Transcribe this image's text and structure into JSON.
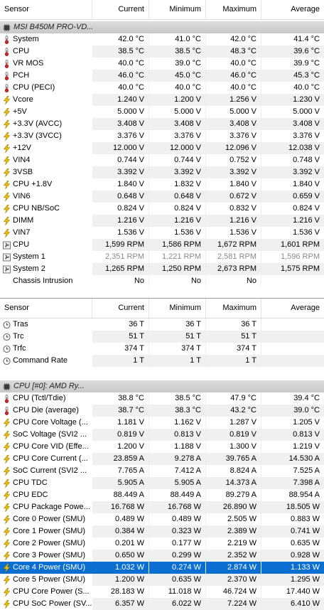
{
  "headers": {
    "sensor": "Sensor",
    "current": "Current",
    "minimum": "Minimum",
    "maximum": "Maximum",
    "average": "Average"
  },
  "panel1": {
    "group_label": "MSI B450M PRO-VD...",
    "rows": [
      {
        "icon": "thermometer",
        "label": "System",
        "cur": "42.0 °C",
        "min": "41.0 °C",
        "max": "42.0 °C",
        "avg": "41.4 °C"
      },
      {
        "icon": "thermometer",
        "label": "CPU",
        "cur": "38.5 °C",
        "min": "38.5 °C",
        "max": "48.3 °C",
        "avg": "39.6 °C"
      },
      {
        "icon": "thermometer",
        "label": "VR MOS",
        "cur": "40.0 °C",
        "min": "39.0 °C",
        "max": "40.0 °C",
        "avg": "39.9 °C"
      },
      {
        "icon": "thermometer",
        "label": "PCH",
        "cur": "46.0 °C",
        "min": "45.0 °C",
        "max": "46.0 °C",
        "avg": "45.3 °C"
      },
      {
        "icon": "thermometer",
        "label": "CPU (PECI)",
        "cur": "40.0 °C",
        "min": "40.0 °C",
        "max": "40.0 °C",
        "avg": "40.0 °C"
      },
      {
        "icon": "bolt",
        "label": "Vcore",
        "cur": "1.240 V",
        "min": "1.200 V",
        "max": "1.256 V",
        "avg": "1.230 V"
      },
      {
        "icon": "bolt",
        "label": "+5V",
        "cur": "5.000 V",
        "min": "5.000 V",
        "max": "5.000 V",
        "avg": "5.000 V"
      },
      {
        "icon": "bolt",
        "label": "+3.3V (AVCC)",
        "cur": "3.408 V",
        "min": "3.408 V",
        "max": "3.408 V",
        "avg": "3.408 V"
      },
      {
        "icon": "bolt",
        "label": "+3.3V (3VCC)",
        "cur": "3.376 V",
        "min": "3.376 V",
        "max": "3.376 V",
        "avg": "3.376 V"
      },
      {
        "icon": "bolt",
        "label": "+12V",
        "cur": "12.000 V",
        "min": "12.000 V",
        "max": "12.096 V",
        "avg": "12.038 V"
      },
      {
        "icon": "bolt",
        "label": "VIN4",
        "cur": "0.744 V",
        "min": "0.744 V",
        "max": "0.752 V",
        "avg": "0.748 V"
      },
      {
        "icon": "bolt",
        "label": "3VSB",
        "cur": "3.392 V",
        "min": "3.392 V",
        "max": "3.392 V",
        "avg": "3.392 V"
      },
      {
        "icon": "bolt",
        "label": "CPU +1.8V",
        "cur": "1.840 V",
        "min": "1.832 V",
        "max": "1.840 V",
        "avg": "1.840 V"
      },
      {
        "icon": "bolt",
        "label": "VIN6",
        "cur": "0.648 V",
        "min": "0.648 V",
        "max": "0.672 V",
        "avg": "0.659 V"
      },
      {
        "icon": "bolt",
        "label": "CPU NB/SoC",
        "cur": "0.824 V",
        "min": "0.824 V",
        "max": "0.832 V",
        "avg": "0.824 V"
      },
      {
        "icon": "bolt",
        "label": "DIMM",
        "cur": "1.216 V",
        "min": "1.216 V",
        "max": "1.216 V",
        "avg": "1.216 V"
      },
      {
        "icon": "bolt",
        "label": "VIN7",
        "cur": "1.536 V",
        "min": "1.536 V",
        "max": "1.536 V",
        "avg": "1.536 V"
      },
      {
        "icon": "fan",
        "label": "CPU",
        "cur": "1,599 RPM",
        "min": "1,586 RPM",
        "max": "1,672 RPM",
        "avg": "1,601 RPM"
      },
      {
        "icon": "fan",
        "label": "System 1",
        "cur": "2,351 RPM",
        "min": "1,221 RPM",
        "max": "2,581 RPM",
        "avg": "1,596 RPM",
        "dim": true
      },
      {
        "icon": "fan",
        "label": "System 2",
        "cur": "1,265 RPM",
        "min": "1,250 RPM",
        "max": "2,673 RPM",
        "avg": "1,575 RPM"
      },
      {
        "icon": "blank",
        "label": "Chassis Intrusion",
        "cur": "No",
        "min": "No",
        "max": "No",
        "avg": ""
      }
    ]
  },
  "panel2": {
    "timing_rows": [
      {
        "icon": "clock",
        "label": "Tras",
        "cur": "36 T",
        "min": "36 T",
        "max": "36 T",
        "avg": ""
      },
      {
        "icon": "clock",
        "label": "Trc",
        "cur": "51 T",
        "min": "51 T",
        "max": "51 T",
        "avg": ""
      },
      {
        "icon": "clock",
        "label": "Trfc",
        "cur": "374 T",
        "min": "374 T",
        "max": "374 T",
        "avg": ""
      },
      {
        "icon": "clock",
        "label": "Command Rate",
        "cur": "1 T",
        "min": "1 T",
        "max": "1 T",
        "avg": ""
      }
    ],
    "cpu_group_label": "CPU [#0]: AMD Ry...",
    "cpu_rows": [
      {
        "icon": "thermometer",
        "label": "CPU (Tctl/Tdie)",
        "cur": "38.8 °C",
        "min": "38.5 °C",
        "max": "47.9 °C",
        "avg": "39.4 °C"
      },
      {
        "icon": "thermometer",
        "label": "CPU Die (average)",
        "cur": "38.7 °C",
        "min": "38.3 °C",
        "max": "43.2 °C",
        "avg": "39.0 °C"
      },
      {
        "icon": "bolt",
        "label": "CPU Core Voltage (...",
        "cur": "1.181 V",
        "min": "1.162 V",
        "max": "1.287 V",
        "avg": "1.205 V"
      },
      {
        "icon": "bolt",
        "label": "SoC Voltage (SVI2 ...",
        "cur": "0.819 V",
        "min": "0.813 V",
        "max": "0.819 V",
        "avg": "0.813 V"
      },
      {
        "icon": "bolt",
        "label": "CPU Core VID (Effe...",
        "cur": "1.200 V",
        "min": "1.188 V",
        "max": "1.300 V",
        "avg": "1.219 V"
      },
      {
        "icon": "bolt",
        "label": "CPU Core Current (...",
        "cur": "23.859 A",
        "min": "9.278 A",
        "max": "39.765 A",
        "avg": "14.530 A"
      },
      {
        "icon": "bolt",
        "label": "SoC Current (SVI2 ...",
        "cur": "7.765 A",
        "min": "7.412 A",
        "max": "8.824 A",
        "avg": "7.525 A"
      },
      {
        "icon": "bolt",
        "label": "CPU TDC",
        "cur": "5.905 A",
        "min": "5.905 A",
        "max": "14.373 A",
        "avg": "7.398 A"
      },
      {
        "icon": "bolt",
        "label": "CPU EDC",
        "cur": "88.449 A",
        "min": "88.449 A",
        "max": "89.279 A",
        "avg": "88.954 A"
      },
      {
        "icon": "bolt",
        "label": "CPU Package Powe...",
        "cur": "16.768 W",
        "min": "16.768 W",
        "max": "26.890 W",
        "avg": "18.505 W"
      },
      {
        "icon": "bolt",
        "label": "Core 0 Power (SMU)",
        "cur": "0.489 W",
        "min": "0.489 W",
        "max": "2.505 W",
        "avg": "0.883 W"
      },
      {
        "icon": "bolt",
        "label": "Core 1 Power (SMU)",
        "cur": "0.384 W",
        "min": "0.323 W",
        "max": "2.389 W",
        "avg": "0.741 W"
      },
      {
        "icon": "bolt",
        "label": "Core 2 Power (SMU)",
        "cur": "0.201 W",
        "min": "0.177 W",
        "max": "2.219 W",
        "avg": "0.635 W"
      },
      {
        "icon": "bolt",
        "label": "Core 3 Power (SMU)",
        "cur": "0.650 W",
        "min": "0.299 W",
        "max": "2.352 W",
        "avg": "0.928 W"
      },
      {
        "icon": "bolt",
        "label": "Core 4 Power (SMU)",
        "cur": "1.032 W",
        "min": "0.274 W",
        "max": "2.874 W",
        "avg": "1.133 W",
        "selected": true
      },
      {
        "icon": "bolt",
        "label": "Core 5 Power (SMU)",
        "cur": "1.200 W",
        "min": "0.635 W",
        "max": "2.370 W",
        "avg": "1.295 W"
      },
      {
        "icon": "bolt",
        "label": "CPU Core Power (S...",
        "cur": "28.183 W",
        "min": "11.018 W",
        "max": "46.724 W",
        "avg": "17.440 W"
      },
      {
        "icon": "bolt",
        "label": "CPU SoC Power (SV...",
        "cur": "6.357 W",
        "min": "6.022 W",
        "max": "7.224 W",
        "avg": "6.410 W"
      }
    ]
  },
  "colors": {
    "selection": "#0a6fd0",
    "bolt": "#f2c300",
    "thermometer_bulb": "#d42020",
    "group_bg": "#d0d0d0"
  }
}
